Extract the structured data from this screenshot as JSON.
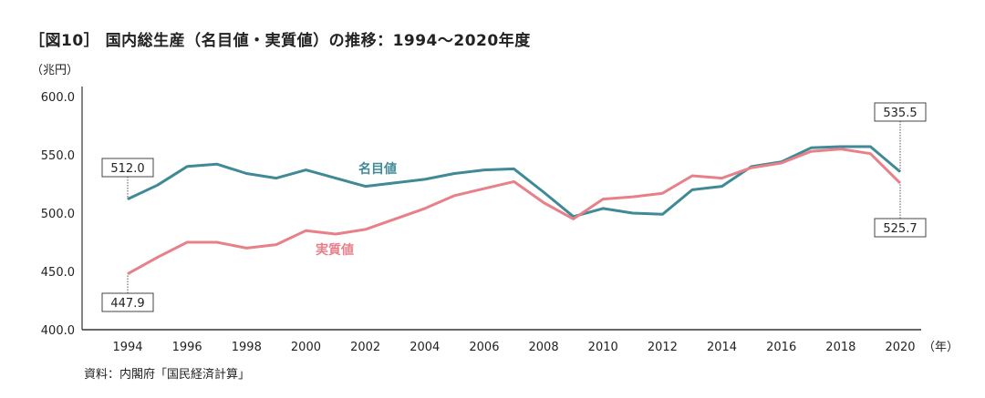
{
  "title": "［図10］ 国内総生産（名目値・実質値）の推移：1994〜2020年度",
  "unit_label": "（兆円）",
  "source": "資料：内閣府「国民経済計算」",
  "chart_data": {
    "type": "line",
    "title": "［図10］ 国内総生産（名目値・実質値）の推移：1994〜2020年度",
    "ylabel": "（兆円）",
    "xlabel": "（年）",
    "ylim": [
      400,
      600
    ],
    "yticks": [
      "400.0",
      "450.0",
      "500.0",
      "550.0",
      "600.0"
    ],
    "xticks": [
      "1994",
      "1996",
      "1998",
      "2000",
      "2002",
      "2004",
      "2006",
      "2008",
      "2010",
      "2012",
      "2014",
      "2016",
      "2018",
      "2020"
    ],
    "grid": false,
    "x": [
      1994,
      1995,
      1996,
      1997,
      1998,
      1999,
      2000,
      2001,
      2002,
      2003,
      2004,
      2005,
      2006,
      2007,
      2008,
      2009,
      2010,
      2011,
      2012,
      2013,
      2014,
      2015,
      2016,
      2017,
      2018,
      2019,
      2020
    ],
    "series": [
      {
        "name": "名目値",
        "color": "#3f8a96",
        "values": [
          512.0,
          524,
          540,
          542,
          534,
          530,
          537,
          530,
          523,
          526,
          529,
          534,
          537,
          538,
          518,
          497,
          504,
          500,
          499,
          520,
          523,
          540,
          544,
          556,
          557,
          557,
          535.5
        ]
      },
      {
        "name": "実質値",
        "color": "#e8808a",
        "values": [
          447.9,
          462,
          475,
          475,
          470,
          473,
          485,
          482,
          486,
          495,
          504,
          515,
          521,
          527,
          509,
          495,
          512,
          514,
          517,
          532,
          530,
          539,
          543,
          553,
          555,
          551,
          525.7
        ]
      }
    ],
    "annotations": [
      {
        "series": "名目値",
        "x": 1994,
        "text": "512.0"
      },
      {
        "series": "実質値",
        "x": 1994,
        "text": "447.9"
      },
      {
        "series": "名目値",
        "x": 2020,
        "text": "535.5"
      },
      {
        "series": "実質値",
        "x": 2020,
        "text": "525.7"
      }
    ]
  }
}
